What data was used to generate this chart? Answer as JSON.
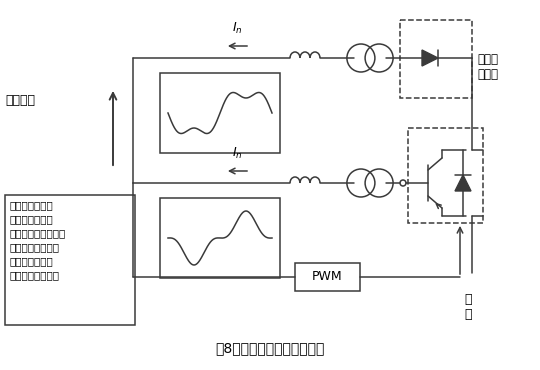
{
  "title": "第8図　能動フィルタの概念",
  "title_fontsize": 10,
  "background_color": "#ffffff",
  "line_color": "#3a3a3a",
  "text_color": "#000000",
  "fig_width": 5.4,
  "fig_height": 3.7,
  "dpi": 100,
  "explanation": "発生源の高調波\n電流と逆位相の\n電流を能動フィルタ\nで発生させ、電力\n系統に流れこま\nないようにする。",
  "label_denryoku": "電力系統",
  "label_kochowa": "高調波\n発生源",
  "label_seigyo": "制\n御",
  "label_pwm": "PWM",
  "label_In": "$I_n$"
}
